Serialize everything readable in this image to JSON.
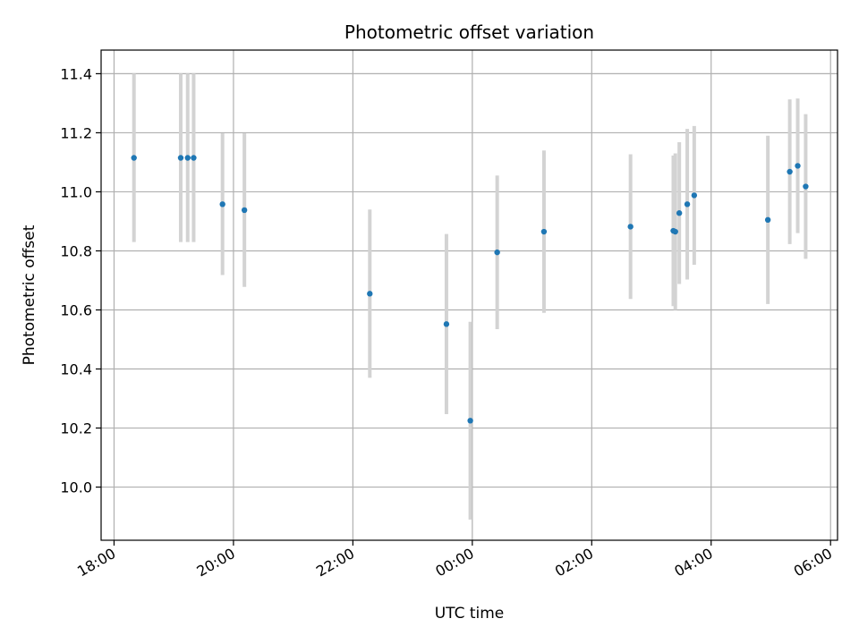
{
  "chart_data": {
    "type": "scatter",
    "title": "Photometric offset variation",
    "xlabel": "UTC time",
    "ylabel": "Photometric offset",
    "x_axis_kind": "time (hours, spanning midnight)",
    "xlim": [
      "17:47",
      "06:07"
    ],
    "ylim": [
      9.82,
      11.48
    ],
    "xticks": [
      "18:00",
      "20:00",
      "22:00",
      "00:00",
      "02:00",
      "04:00",
      "06:00"
    ],
    "yticks": [
      "10.0",
      "10.2",
      "10.4",
      "10.6",
      "10.8",
      "11.0",
      "11.2",
      "11.4"
    ],
    "grid": true,
    "legend": "none",
    "series": [
      {
        "point_color": "#1f77b4",
        "errorbar_color": "#d3d3d3",
        "points": [
          {
            "x": "18:20",
            "y": 11.115,
            "err": 0.285
          },
          {
            "x": "19:07",
            "y": 11.115,
            "err": 0.285
          },
          {
            "x": "19:14",
            "y": 11.115,
            "err": 0.285
          },
          {
            "x": "19:20",
            "y": 11.115,
            "err": 0.285
          },
          {
            "x": "19:49",
            "y": 10.958,
            "err": 0.24
          },
          {
            "x": "20:11",
            "y": 10.938,
            "err": 0.26
          },
          {
            "x": "22:17",
            "y": 10.655,
            "err": 0.285
          },
          {
            "x": "23:34",
            "y": 10.552,
            "err": 0.305
          },
          {
            "x": "23:58",
            "y": 10.225,
            "err": 0.335
          },
          {
            "x": "00:25",
            "y": 10.795,
            "err": 0.26
          },
          {
            "x": "01:12",
            "y": 10.865,
            "err": 0.275
          },
          {
            "x": "02:39",
            "y": 10.882,
            "err": 0.245
          },
          {
            "x": "03:22",
            "y": 10.868,
            "err": 0.255
          },
          {
            "x": "03:24",
            "y": 10.865,
            "err": 0.265
          },
          {
            "x": "03:28",
            "y": 10.928,
            "err": 0.24
          },
          {
            "x": "03:36",
            "y": 10.958,
            "err": 0.255
          },
          {
            "x": "03:43",
            "y": 10.988,
            "err": 0.235
          },
          {
            "x": "04:57",
            "y": 10.905,
            "err": 0.285
          },
          {
            "x": "05:19",
            "y": 11.068,
            "err": 0.245
          },
          {
            "x": "05:27",
            "y": 11.088,
            "err": 0.228
          },
          {
            "x": "05:35",
            "y": 11.018,
            "err": 0.245
          }
        ]
      }
    ]
  }
}
